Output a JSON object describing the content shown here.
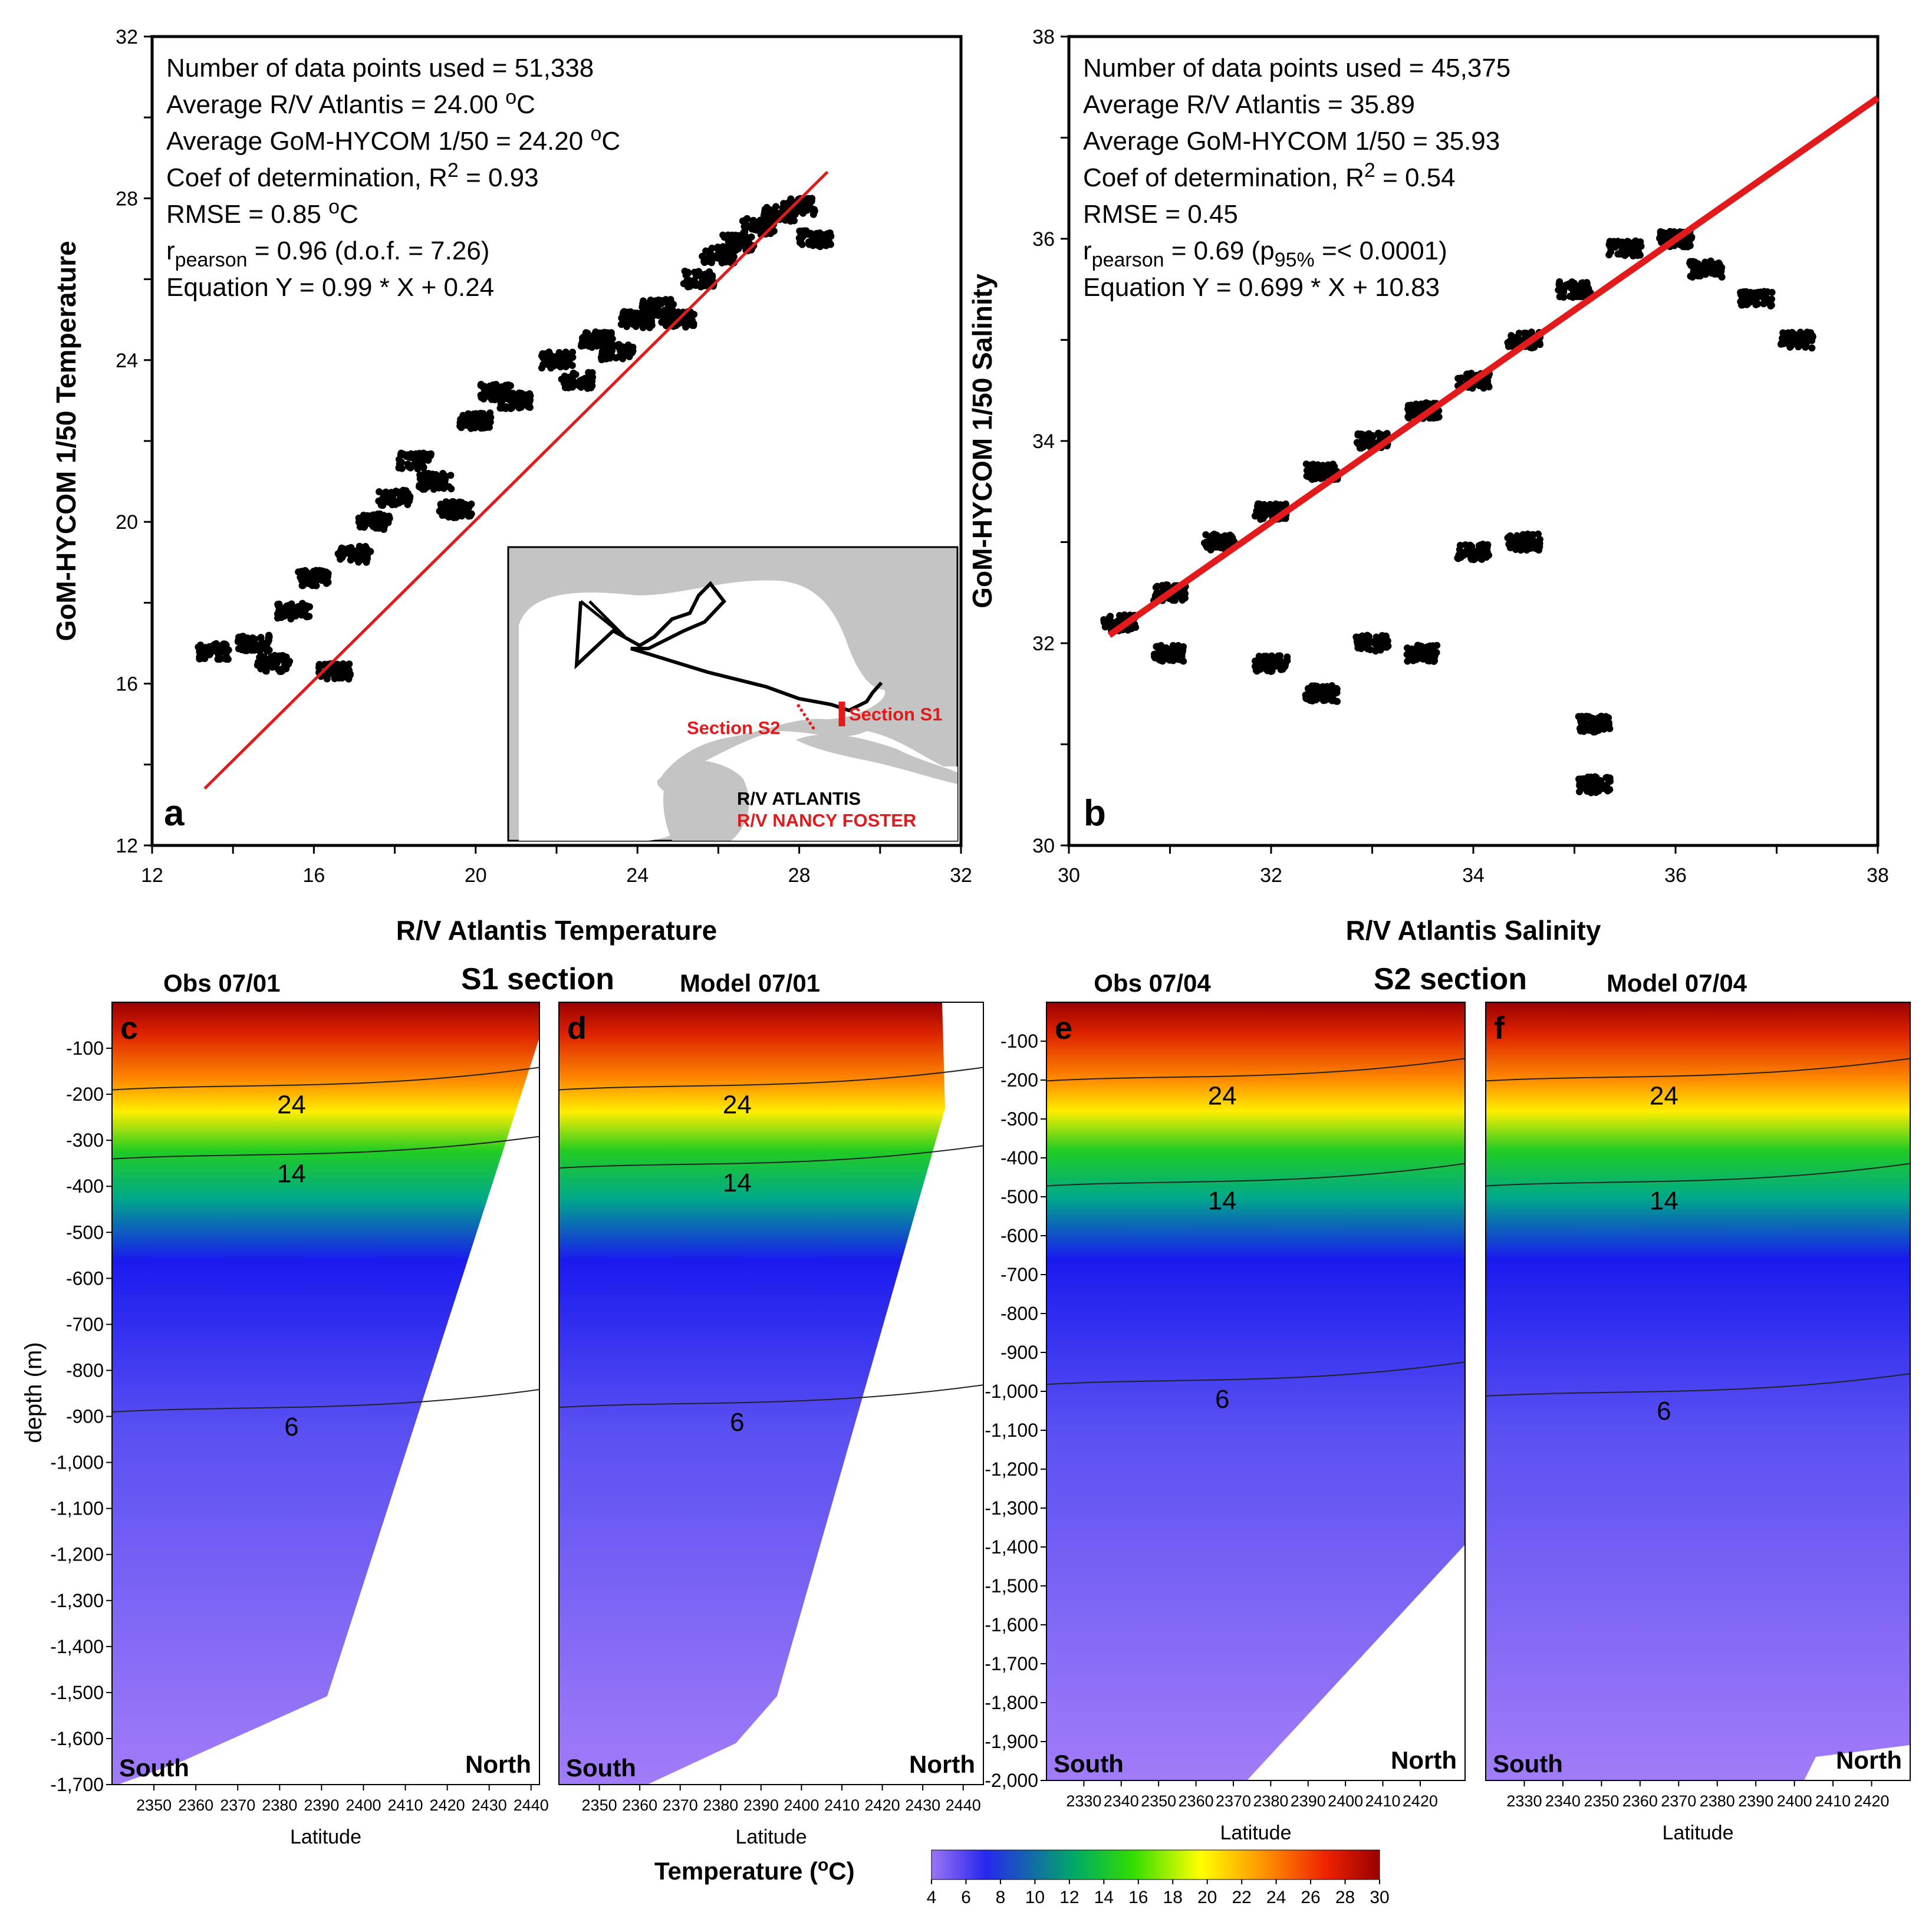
{
  "chart_data": [
    {
      "panel": "a",
      "type": "scatter",
      "xlabel": "R/V Atlantis Temperature",
      "ylabel": "GoM-HYCOM 1/50 Temperature",
      "xlim": [
        12,
        32
      ],
      "ylim": [
        12,
        32
      ],
      "xticks": [
        12,
        16,
        20,
        24,
        28,
        32
      ],
      "yticks": [
        12,
        16,
        20,
        24,
        28,
        32
      ],
      "stats": [
        {
          "pre": "Number of data points used = 51,338"
        },
        {
          "pre": "Average R/V Atlantis = 24.00 ",
          "sup": "o",
          "post": "C"
        },
        {
          "pre": "Average GoM-HYCOM 1/50 = 24.20 ",
          "sup": "o",
          "post": "C"
        },
        {
          "pre": "Coef of determination, R",
          "sup": "2",
          "post": " = 0.93"
        },
        {
          "pre": "RMSE = 0.85 ",
          "sup": "o",
          "post": "C"
        },
        {
          "pre": "r",
          "sub": "pearson",
          "post": " = 0.96 (d.o.f. = 7.26)"
        },
        {
          "pre": "Equation Y = 0.99 * X + 0.24"
        }
      ],
      "fit": {
        "slope": 0.99,
        "intercept": 0.24,
        "x_range": [
          13.3,
          28.7
        ],
        "color": "#e31a1c"
      },
      "scatter_trend": [
        [
          13.5,
          16.8
        ],
        [
          14.5,
          17.0
        ],
        [
          15.0,
          16.5
        ],
        [
          16.5,
          16.3
        ],
        [
          15.5,
          17.8
        ],
        [
          16.0,
          18.6
        ],
        [
          17.0,
          19.2
        ],
        [
          17.5,
          20.0
        ],
        [
          18.0,
          20.6
        ],
        [
          18.5,
          21.5
        ],
        [
          19.0,
          21.0
        ],
        [
          19.5,
          20.3
        ],
        [
          20.0,
          22.5
        ],
        [
          20.5,
          23.2
        ],
        [
          21.0,
          23.0
        ],
        [
          22.0,
          24.0
        ],
        [
          22.5,
          23.5
        ],
        [
          23.0,
          24.5
        ],
        [
          23.5,
          24.2
        ],
        [
          24.0,
          25.0
        ],
        [
          24.5,
          25.3
        ],
        [
          25.0,
          25.0
        ],
        [
          25.5,
          26.0
        ],
        [
          26.0,
          26.6
        ],
        [
          26.5,
          26.9
        ],
        [
          27.0,
          27.3
        ],
        [
          27.5,
          27.6
        ],
        [
          28.0,
          27.8
        ],
        [
          28.4,
          27.0
        ]
      ],
      "panel_label": "a",
      "inset_map": {
        "legend": [
          {
            "label": "R/V ATLANTIS",
            "color": "#000000"
          },
          {
            "label": "R/V NANCY FOSTER",
            "color": "#e31a1c"
          }
        ],
        "labels": [
          "Section S2",
          "Section S1"
        ]
      }
    },
    {
      "panel": "b",
      "type": "scatter",
      "xlabel": "R/V Atlantis Salinity",
      "ylabel": "GoM-HYCOM 1/50 Salinity",
      "xlim": [
        30,
        38
      ],
      "ylim": [
        30,
        38
      ],
      "xticks": [
        30,
        32,
        34,
        36,
        38
      ],
      "yticks": [
        30,
        32,
        34,
        36,
        38
      ],
      "stats": [
        {
          "pre": "Number of data points used = 45,375"
        },
        {
          "pre": "Average R/V Atlantis  = 35.89"
        },
        {
          "pre": "Average GoM-HYCOM 1/50 = 35.93"
        },
        {
          "pre": "Coef of determination, R",
          "sup": "2",
          "post": " = 0.54"
        },
        {
          "pre": "RMSE = 0.45"
        },
        {
          "pre": "r",
          "sub": "pearson",
          "post": " = 0.69 (p",
          "sub2": "95%",
          "post2": " =< 0.0001)"
        },
        {
          "pre": "Equation Y = 0.699 * X + 10.83"
        }
      ],
      "fit": {
        "slope": 0.699,
        "intercept": 10.83,
        "x_range": [
          30.4,
          38.0
        ],
        "color": "#e31a1c"
      },
      "scatter_trend": [
        [
          30.5,
          32.2
        ],
        [
          31.0,
          32.5
        ],
        [
          31.5,
          33.0
        ],
        [
          32.0,
          33.3
        ],
        [
          32.5,
          33.7
        ],
        [
          33.0,
          34.0
        ],
        [
          33.5,
          34.3
        ],
        [
          34.0,
          34.6
        ],
        [
          34.5,
          35.0
        ],
        [
          35.0,
          35.5
        ],
        [
          35.5,
          35.9
        ],
        [
          36.0,
          36.0
        ],
        [
          36.3,
          35.7
        ],
        [
          36.8,
          35.4
        ],
        [
          37.2,
          35.0
        ],
        [
          31.0,
          31.9
        ],
        [
          32.0,
          31.8
        ],
        [
          32.5,
          31.5
        ],
        [
          33.0,
          32.0
        ],
        [
          33.5,
          31.9
        ],
        [
          34.0,
          32.9
        ],
        [
          34.5,
          33.0
        ],
        [
          35.2,
          31.2
        ],
        [
          35.2,
          30.6
        ]
      ],
      "panel_label": "b"
    },
    {
      "type": "heatmap",
      "group_title": "S1 section",
      "panels": [
        {
          "panel": "c",
          "title": "Obs 07/01",
          "xlim": [
            2340,
            2442
          ],
          "xticks": [
            2350,
            2360,
            2370,
            2380,
            2390,
            2400,
            2410,
            2420,
            2430,
            2440
          ],
          "contours": [
            {
              "level": "24",
              "depth": -180
            },
            {
              "level": "14",
              "depth": -330
            },
            {
              "level": "6",
              "depth": -880
            }
          ]
        },
        {
          "panel": "d",
          "title": "Model 07/01",
          "xlim": [
            2340,
            2445
          ],
          "xticks": [
            2350,
            2360,
            2370,
            2380,
            2390,
            2400,
            2410,
            2420,
            2430,
            2440
          ],
          "contours": [
            {
              "level": "24",
              "depth": -180
            },
            {
              "level": "14",
              "depth": -350
            },
            {
              "level": "6",
              "depth": -870
            }
          ]
        }
      ],
      "xlabel": "Latitude",
      "ylabel": "depth (m)",
      "ylim": [
        -1700,
        0
      ],
      "yticks": [
        -100,
        -200,
        -300,
        -400,
        -500,
        -600,
        -700,
        -800,
        -900,
        -1000,
        -1100,
        -1200,
        -1300,
        -1400,
        -1500,
        -1600,
        -1700
      ],
      "ytick_labels": [
        "-100",
        "-200",
        "-300",
        "-400",
        "-500",
        "-600",
        "-700",
        "-800",
        "-900",
        "-1,000",
        "-1,100",
        "-1,200",
        "-1,300",
        "-1,400",
        "-1,500",
        "-1,600",
        "-1,700"
      ],
      "direction_labels": [
        "South",
        "North"
      ]
    },
    {
      "type": "heatmap",
      "group_title": "S2 section",
      "panels": [
        {
          "panel": "e",
          "title": "Obs 07/04",
          "xlim": [
            2320,
            2432
          ],
          "xticks": [
            2330,
            2340,
            2350,
            2360,
            2370,
            2380,
            2390,
            2400,
            2410,
            2420
          ],
          "contours": [
            {
              "level": "24",
              "depth": -190
            },
            {
              "level": "14",
              "depth": -460
            },
            {
              "level": "6",
              "depth": -970
            }
          ]
        },
        {
          "panel": "f",
          "title": "Model 07/04",
          "xlim": [
            2320,
            2430
          ],
          "xticks": [
            2330,
            2340,
            2350,
            2360,
            2370,
            2380,
            2390,
            2400,
            2410,
            2420
          ],
          "contours": [
            {
              "level": "24",
              "depth": -190
            },
            {
              "level": "14",
              "depth": -460
            },
            {
              "level": "6",
              "depth": -1000
            }
          ]
        }
      ],
      "xlabel": "Latitude",
      "ylim": [
        -2000,
        0
      ],
      "yticks": [
        -100,
        -200,
        -300,
        -400,
        -500,
        -600,
        -700,
        -800,
        -900,
        -1000,
        -1100,
        -1200,
        -1300,
        -1400,
        -1500,
        -1600,
        -1700,
        -1800,
        -1900,
        -2000
      ],
      "ytick_labels": [
        "-100",
        "-200",
        "-300",
        "-400",
        "-500",
        "-600",
        "-700",
        "-800",
        "-900",
        "-1,000",
        "-1,100",
        "-1,200",
        "-1,300",
        "-1,400",
        "-1,500",
        "-1,600",
        "-1,700",
        "-1,800",
        "-1,900",
        "-2,000"
      ],
      "direction_labels": [
        "South",
        "North"
      ]
    }
  ],
  "colorbar": {
    "title_pre": "Temperature (",
    "title_sup": "o",
    "title_post": "C)",
    "ticks": [
      "4",
      "6",
      "8",
      "10",
      "12",
      "14",
      "16",
      "18",
      "20",
      "22",
      "24",
      "26",
      "28",
      "30"
    ],
    "colors": [
      "#9c74f6",
      "#2727ee",
      "#00cc00",
      "#ffff00",
      "#ff8c00",
      "#ee2200",
      "#990000"
    ]
  }
}
